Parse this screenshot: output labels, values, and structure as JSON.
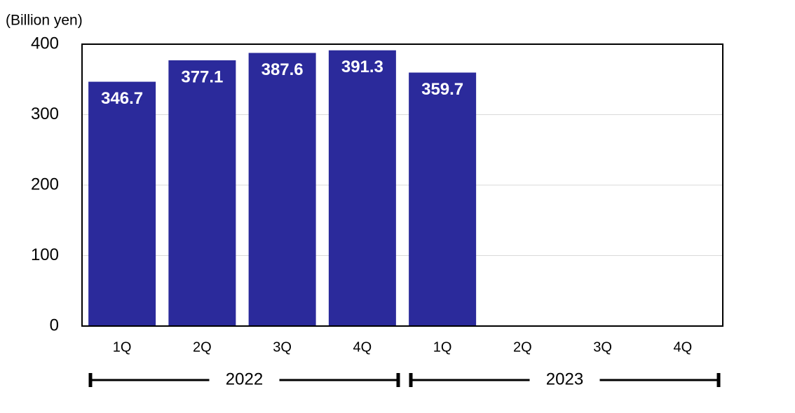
{
  "chart_data": {
    "type": "bar",
    "y_label": "(Billion yen)",
    "categories": [
      "1Q",
      "2Q",
      "3Q",
      "4Q",
      "1Q",
      "2Q",
      "3Q",
      "4Q"
    ],
    "x_groups": [
      "2022",
      "2023"
    ],
    "values": [
      346.7,
      377.1,
      387.6,
      391.3,
      359.7,
      null,
      null,
      null
    ],
    "color": "#2b2a9b",
    "ylim": [
      0,
      400
    ],
    "yticks": [
      0,
      100,
      200,
      300,
      400
    ],
    "grid": true
  }
}
